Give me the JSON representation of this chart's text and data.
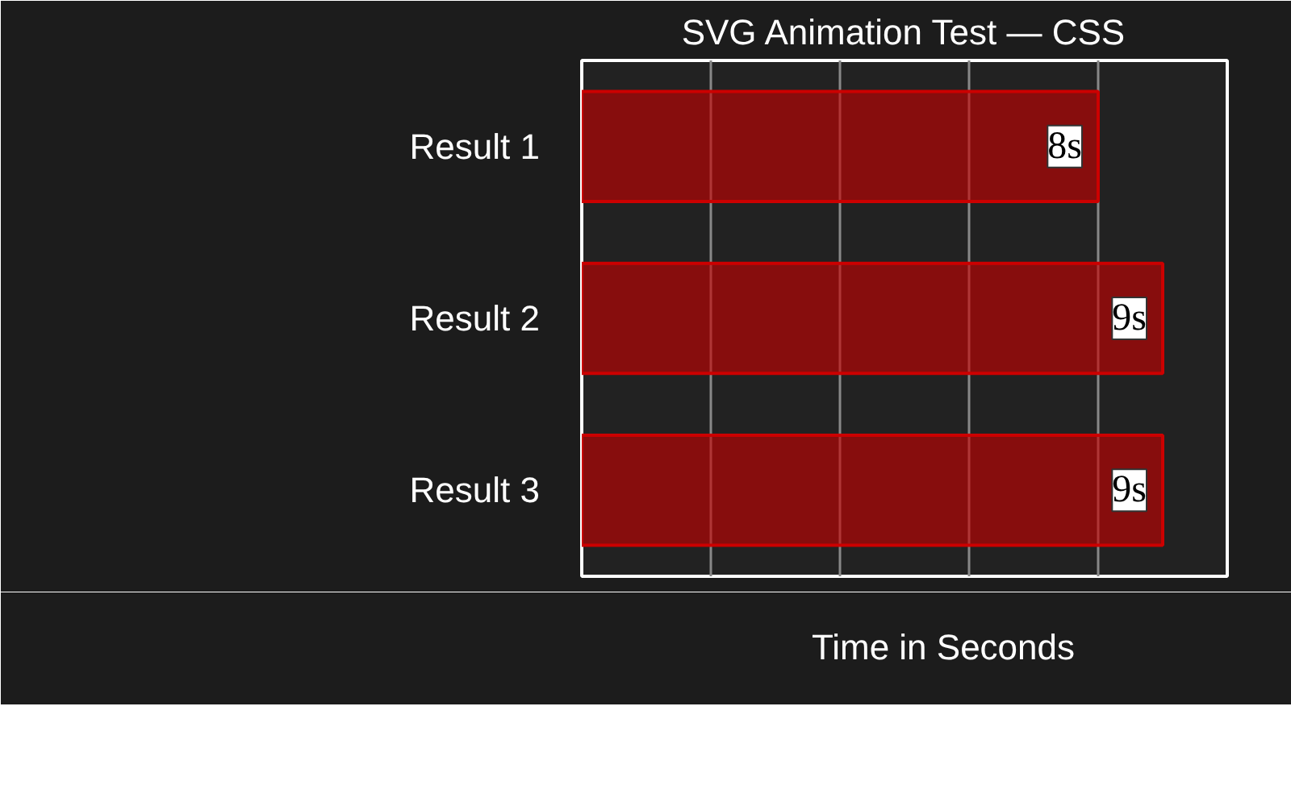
{
  "chart_data": {
    "type": "bar",
    "orientation": "horizontal",
    "title": "SVG Animation Test — CSS",
    "categories": [
      "Result 1",
      "Result 2",
      "Result 3"
    ],
    "series": [
      {
        "name": "Time in Seconds",
        "color": "#cc0000",
        "values": [
          8,
          9,
          9
        ],
        "value_labels": [
          "8s",
          "9s",
          "9s"
        ]
      }
    ],
    "xlim": [
      0,
      10
    ],
    "xticks": [
      {
        "value": 0,
        "label": null
      },
      {
        "value": 2,
        "label": null
      },
      {
        "value": 4,
        "label": null
      },
      {
        "value": 6,
        "label": null
      },
      {
        "value": 8,
        "label": null
      },
      {
        "value": 10,
        "label": null
      }
    ],
    "tick_labels": "y",
    "grid": "x",
    "legend": "bottom"
  }
}
